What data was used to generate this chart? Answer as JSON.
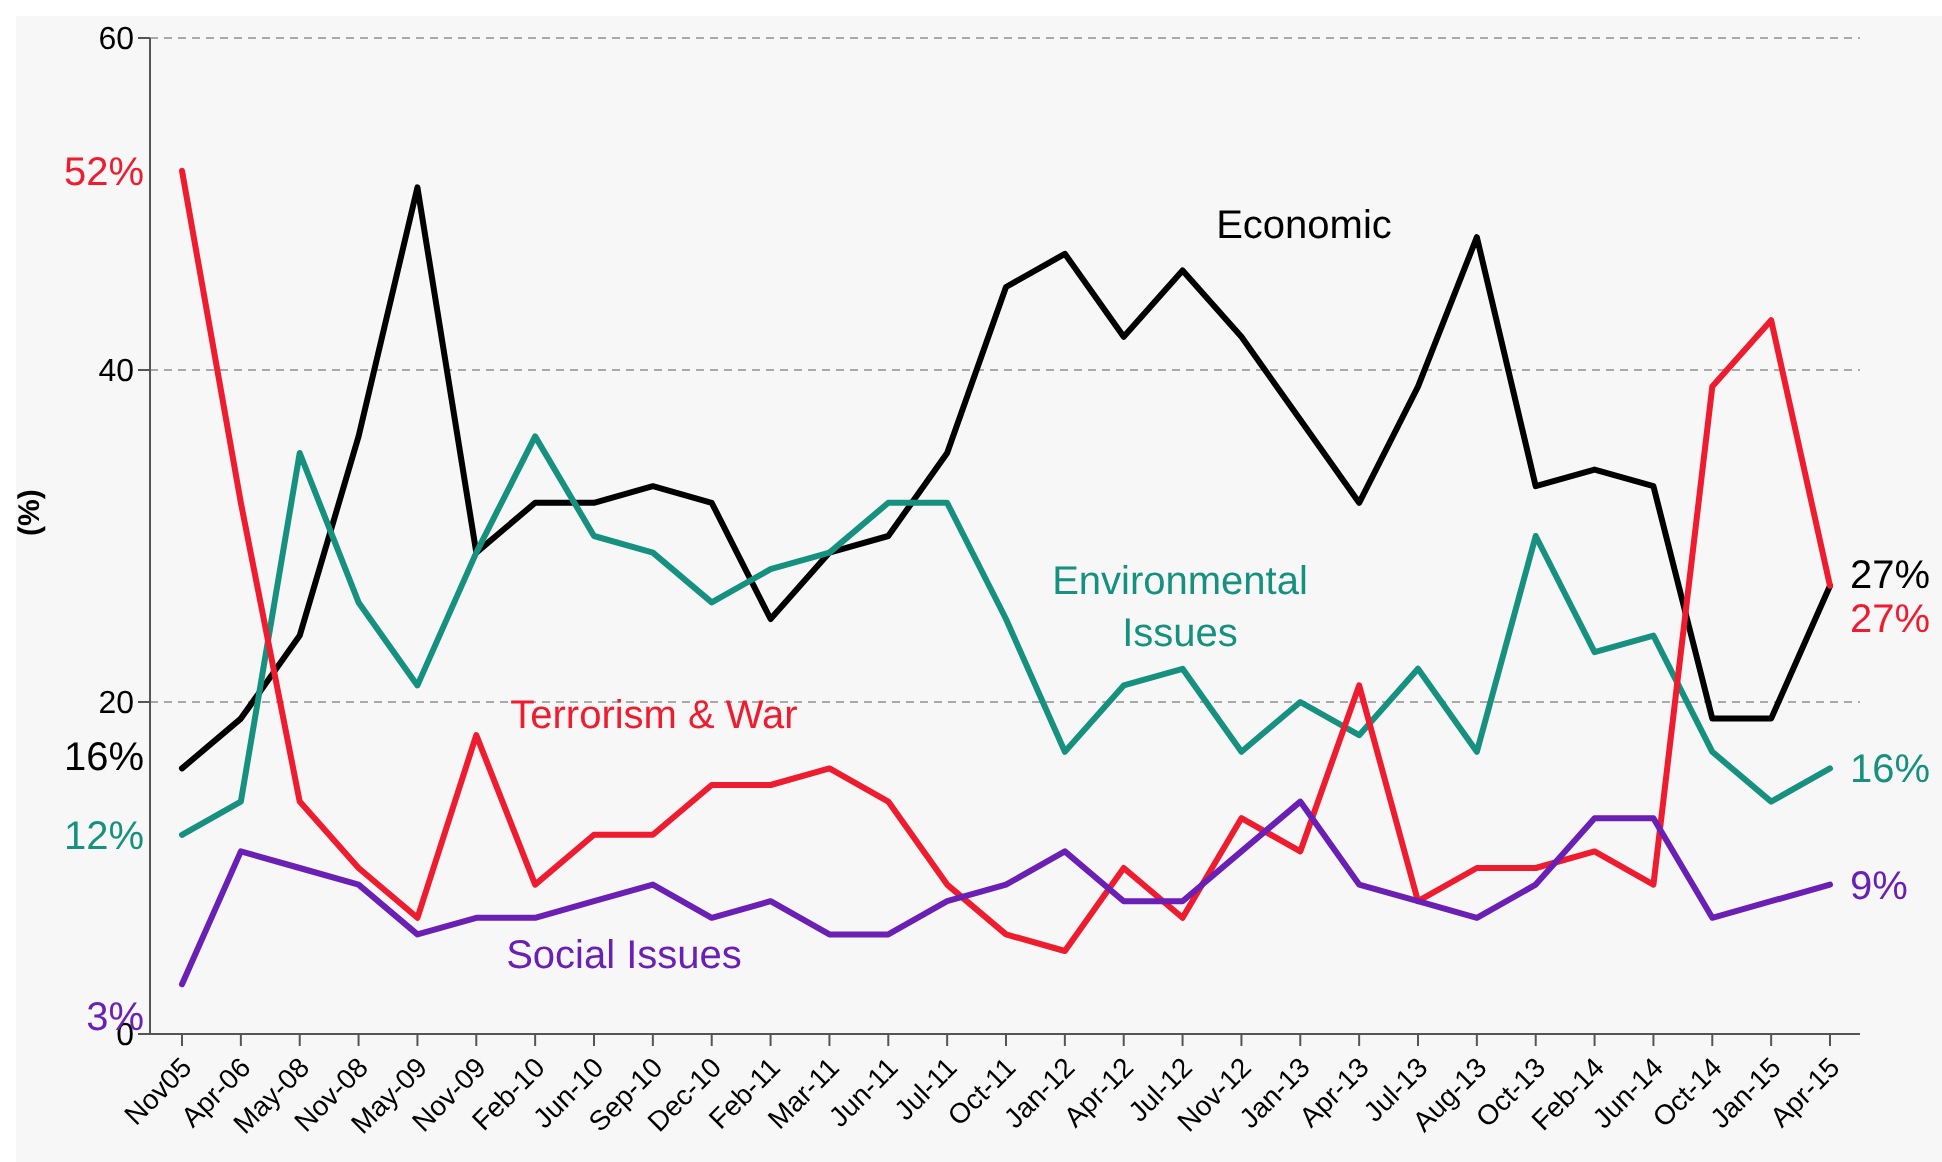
{
  "chart_data": {
    "type": "line",
    "ylabel": "(%)",
    "categories": [
      "Nov05",
      "Apr-06",
      "May-08",
      "Nov-08",
      "May-09",
      "Nov-09",
      "Feb-10",
      "Jun-10",
      "Sep-10",
      "Dec-10",
      "Feb-11",
      "Mar-11",
      "Jun-11",
      "Jul-11",
      "Oct-11",
      "Jan-12",
      "Apr-12",
      "Jul-12",
      "Nov-12",
      "Jan-13",
      "Apr-13",
      "Jul-13",
      "Aug-13",
      "Oct-13",
      "Feb-14",
      "Jun-14",
      "Oct-14",
      "Jan-15",
      "Apr-15"
    ],
    "series": [
      {
        "name": "Economic",
        "color": "#000000",
        "values": [
          16,
          19,
          24,
          36,
          51,
          29,
          32,
          32,
          33,
          32,
          25,
          29,
          30,
          35,
          45,
          47,
          42,
          46,
          42,
          37,
          32,
          39,
          48,
          33,
          34,
          33,
          19,
          19,
          27
        ],
        "value_labels": [
          "16%",
          null,
          null,
          null,
          null,
          null,
          null,
          null,
          null,
          null,
          null,
          null,
          null,
          null,
          null,
          null,
          null,
          null,
          null,
          null,
          null,
          null,
          null,
          null,
          null,
          null,
          null,
          null,
          "27%"
        ]
      },
      {
        "name": "Environmental Issues",
        "color": "#17917f",
        "values": [
          12,
          14,
          35,
          26,
          21,
          29,
          36,
          30,
          29,
          26,
          28,
          29,
          32,
          32,
          25,
          17,
          21,
          22,
          17,
          20,
          18,
          22,
          17,
          30,
          23,
          24,
          17,
          14,
          16
        ],
        "value_labels": [
          "12%",
          null,
          null,
          null,
          null,
          null,
          null,
          null,
          null,
          null,
          null,
          null,
          null,
          null,
          null,
          null,
          null,
          null,
          null,
          null,
          null,
          null,
          null,
          null,
          null,
          null,
          null,
          null,
          "16%"
        ]
      },
      {
        "name": "Terrorism & War",
        "color": "#ee1c2e",
        "values": [
          52,
          32,
          14,
          10,
          7,
          18,
          9,
          12,
          12,
          15,
          15,
          16,
          14,
          9,
          6,
          5,
          10,
          7,
          13,
          11,
          21,
          8,
          10,
          10,
          11,
          9,
          39,
          43,
          27
        ],
        "value_labels": [
          "52%",
          null,
          null,
          null,
          null,
          null,
          null,
          null,
          null,
          null,
          null,
          null,
          null,
          null,
          null,
          null,
          null,
          null,
          null,
          null,
          null,
          null,
          null,
          null,
          null,
          null,
          null,
          null,
          "27%"
        ]
      },
      {
        "name": "Social Issues",
        "color": "#6a1fb5",
        "values": [
          3,
          11,
          10,
          9,
          6,
          7,
          7,
          8,
          9,
          7,
          8,
          6,
          6,
          8,
          9,
          11,
          8,
          8,
          11,
          14,
          9,
          8,
          7,
          9,
          13,
          13,
          7,
          8,
          9
        ],
        "value_labels": [
          "3%",
          null,
          null,
          null,
          null,
          null,
          null,
          null,
          null,
          null,
          null,
          null,
          null,
          null,
          null,
          null,
          null,
          null,
          null,
          null,
          null,
          null,
          null,
          null,
          null,
          null,
          null,
          null,
          "9%"
        ]
      }
    ],
    "ylim": [
      0,
      60
    ],
    "yticks": [
      0,
      20,
      40,
      60
    ],
    "grid": "y",
    "legend": false,
    "marker": "none",
    "line_style": "solid"
  }
}
